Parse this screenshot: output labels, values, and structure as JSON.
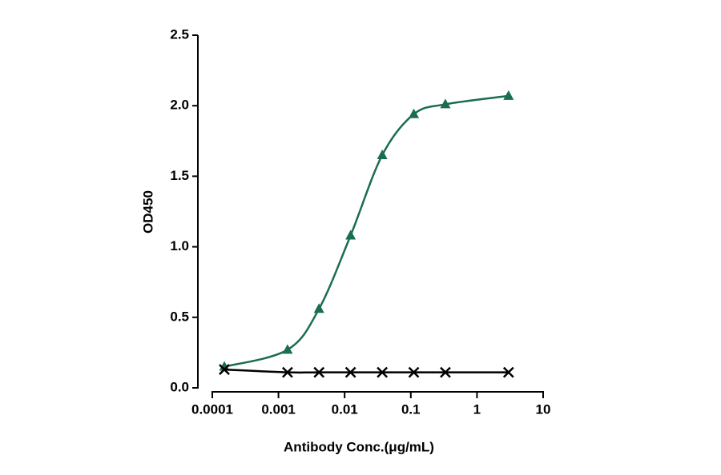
{
  "chart_data": {
    "type": "line",
    "x_label": "Antibody Conc.(μg/mL)",
    "y_label": "OD450",
    "log_x": true,
    "xlim": [
      0.0001,
      10
    ],
    "xticks": [
      0.0001,
      0.001,
      0.01,
      0.1,
      1,
      10
    ],
    "ylim": [
      0,
      2.5
    ],
    "yticks": [
      {
        "value": 0,
        "label": "0.0"
      },
      {
        "value": 0.5,
        "label": "0.5"
      },
      {
        "value": 1,
        "label": "1.0"
      },
      {
        "value": 1.5,
        "label": "1.5"
      },
      {
        "value": 2,
        "label": "2.0"
      },
      2.5
    ],
    "x": [
      0.000152,
      0.00137,
      0.0041,
      0.0123,
      0.037,
      0.111,
      0.333,
      3
    ],
    "series": [
      {
        "color": "#1a6e4f",
        "marker": "triangle",
        "values": [
          0.15,
          0.27,
          0.56,
          1.08,
          1.65,
          1.94,
          2.01,
          2.07
        ]
      },
      {
        "color": "#000000",
        "marker": "cross",
        "values": [
          0.13,
          0.11,
          0.11,
          0.11,
          0.11,
          0.11,
          0.11,
          0.11
        ]
      }
    ]
  }
}
